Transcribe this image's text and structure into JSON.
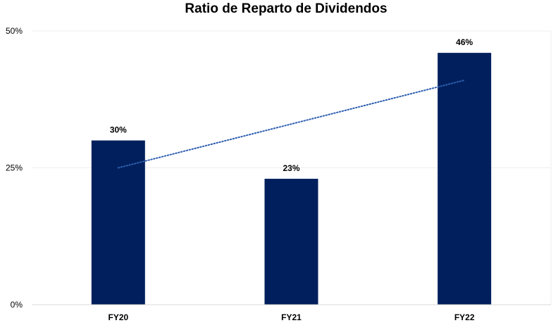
{
  "chart_data": {
    "type": "bar",
    "title": "Ratio de Reparto de Dividendos",
    "categories": [
      "FY20",
      "FY21",
      "FY22"
    ],
    "values": [
      30,
      23,
      46
    ],
    "data_labels": [
      "30%",
      "23%",
      "46%"
    ],
    "ylim": [
      0,
      50
    ],
    "yticks": [
      0,
      25,
      50
    ],
    "ytick_labels": [
      "0%",
      "25%",
      "50%"
    ],
    "xlabel": "",
    "ylabel": "",
    "grid": true,
    "legend": "none",
    "bar_color": "#001f5c",
    "trendline": {
      "type": "linear",
      "style": "dotted",
      "color": "#2e5fb0"
    }
  }
}
